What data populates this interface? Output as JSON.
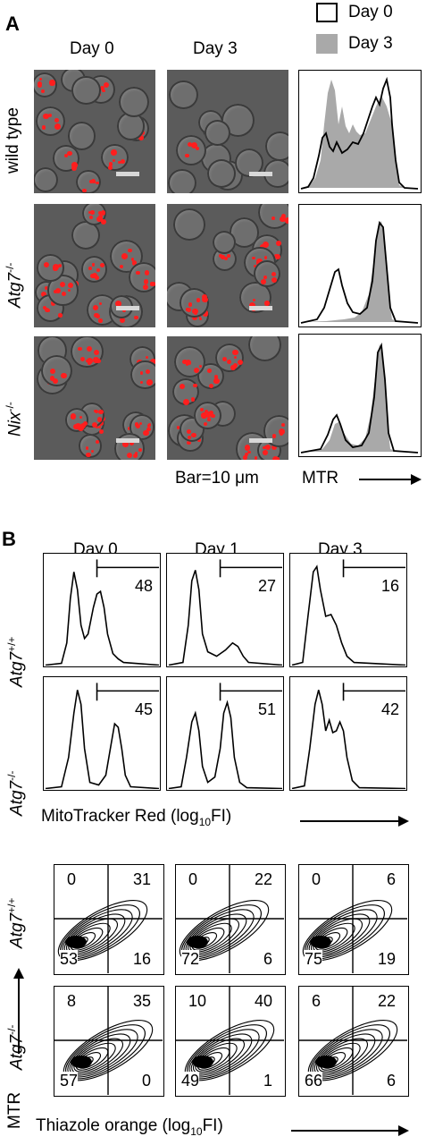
{
  "panelA": {
    "letter": "A",
    "col_headers": [
      "Day 0",
      "Day 3"
    ],
    "rows": [
      {
        "label": "wild type",
        "sup": ""
      },
      {
        "label": "Atg7",
        "sup": "-/-"
      },
      {
        "label": "Nix",
        "sup": "-/-"
      }
    ],
    "legend": {
      "day0": "Day 0",
      "day3": "Day 3"
    },
    "scale_text": "Bar=10 μm",
    "axis_text": "MTR"
  },
  "panelB": {
    "letter": "B",
    "col_headers": [
      "Day 0",
      "Day 1",
      "Day 3"
    ],
    "hist_rows": [
      {
        "label": "Atg7",
        "sup": "+/+",
        "gates": [
          "48",
          "27",
          "16"
        ]
      },
      {
        "label": "Atg7",
        "sup": "-/-",
        "gates": [
          "45",
          "51",
          "42"
        ]
      }
    ],
    "hist_xlabel_pre": "MitoTracker Red (log",
    "hist_xlabel_sub": "10",
    "hist_xlabel_post": "FI)",
    "contour_rows": [
      {
        "label": "Atg7",
        "sup": "+/+",
        "quads": [
          {
            "ul": "0",
            "ur": "31",
            "ll": "53",
            "lr": "16"
          },
          {
            "ul": "0",
            "ur": "22",
            "ll": "72",
            "lr": "6"
          },
          {
            "ul": "0",
            "ur": "6",
            "ll": "75",
            "lr": "19"
          }
        ]
      },
      {
        "label": "Atg7",
        "sup": "-/-",
        "quads": [
          {
            "ul": "8",
            "ur": "35",
            "ll": "57",
            "lr": "0"
          },
          {
            "ul": "10",
            "ur": "40",
            "ll": "49",
            "lr": "1"
          },
          {
            "ul": "6",
            "ur": "22",
            "ll": "66",
            "lr": "6"
          }
        ]
      }
    ],
    "contour_ylabel": "MTR",
    "contour_xlabel_pre": "Thiazole orange (log",
    "contour_xlabel_sub": "10",
    "contour_xlabel_post": "FI)"
  },
  "colors": {
    "day3_fill": "#a9a9a9",
    "red_stain": "#ff1e1e"
  }
}
